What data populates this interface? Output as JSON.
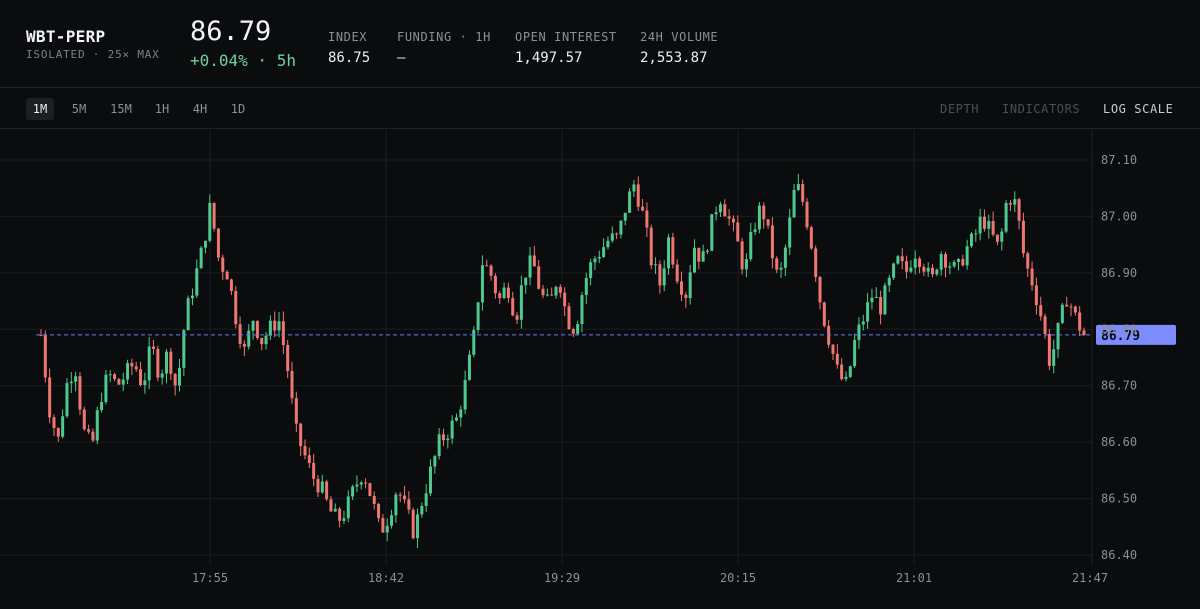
{
  "header": {
    "symbol": "WBT-PERP",
    "market_info": "ISOLATED · 25× MAX",
    "price": "86.79",
    "change": "+0.04% · 5h",
    "stats": [
      {
        "label": "INDEX",
        "value": "86.75"
      },
      {
        "label": "FUNDING · 1H",
        "value": "—"
      },
      {
        "label": "OPEN INTEREST",
        "value": "1,497.57"
      },
      {
        "label": "24H VOLUME",
        "value": "2,553.87"
      }
    ]
  },
  "toolbar": {
    "timeframes": [
      "1M",
      "5M",
      "15M",
      "1H",
      "4H",
      "1D"
    ],
    "active_timeframe": "1M",
    "tools": [
      "DEPTH",
      "INDICATORS",
      "LOG SCALE"
    ]
  },
  "colors": {
    "up": "#4ec98f",
    "down": "#ef7770",
    "price_line": "#6d7cf2",
    "price_tag": "#7c8cff",
    "grid": "#1a1d22"
  },
  "chart_data": {
    "type": "candlestick",
    "ylim": [
      86.4,
      87.1
    ],
    "yticks": [
      "87.10",
      "87.00",
      "86.90",
      "86.80",
      "86.70",
      "86.60",
      "86.50",
      "86.40"
    ],
    "xticks": [
      "17:55",
      "18:42",
      "19:29",
      "20:15",
      "21:01",
      "21:47"
    ],
    "last_price": 86.79,
    "last_price_label": "86.79",
    "close_path": [
      86.79,
      86.66,
      86.6,
      86.7,
      86.74,
      86.62,
      86.59,
      86.68,
      86.72,
      86.7,
      86.72,
      86.74,
      86.7,
      86.77,
      86.72,
      86.76,
      86.69,
      86.82,
      86.88,
      86.94,
      87.02,
      86.92,
      86.9,
      86.82,
      86.76,
      86.82,
      86.78,
      86.8,
      86.82,
      86.74,
      86.62,
      86.58,
      86.54,
      86.52,
      86.48,
      86.46,
      86.48,
      86.52,
      86.55,
      86.5,
      86.44,
      86.47,
      86.52,
      86.48,
      86.44,
      86.5,
      86.55,
      86.6,
      86.62,
      86.64,
      86.7,
      86.78,
      86.92,
      86.9,
      86.85,
      86.88,
      86.82,
      86.9,
      86.92,
      86.86,
      86.84,
      86.9,
      86.82,
      86.8,
      86.88,
      86.92,
      86.94,
      86.96,
      86.96,
      87.02,
      87.06,
      87.0,
      86.92,
      86.88,
      86.96,
      86.9,
      86.86,
      86.95,
      86.92,
      86.98,
      87.04,
      87.0,
      86.96,
      86.9,
      86.98,
      87.02,
      86.95,
      86.88,
      86.96,
      87.06,
      87.02,
      86.94,
      86.84,
      86.78,
      86.72,
      86.7,
      86.78,
      86.82,
      86.86,
      86.84,
      86.88,
      86.92,
      86.9,
      86.94,
      86.92,
      86.88,
      86.94,
      86.92,
      86.9,
      86.94,
      86.96,
      87.0,
      86.97,
      86.94,
      87.04,
      87.02,
      86.92,
      86.88,
      86.82,
      86.74,
      86.8,
      86.86,
      86.82,
      86.79
    ]
  }
}
